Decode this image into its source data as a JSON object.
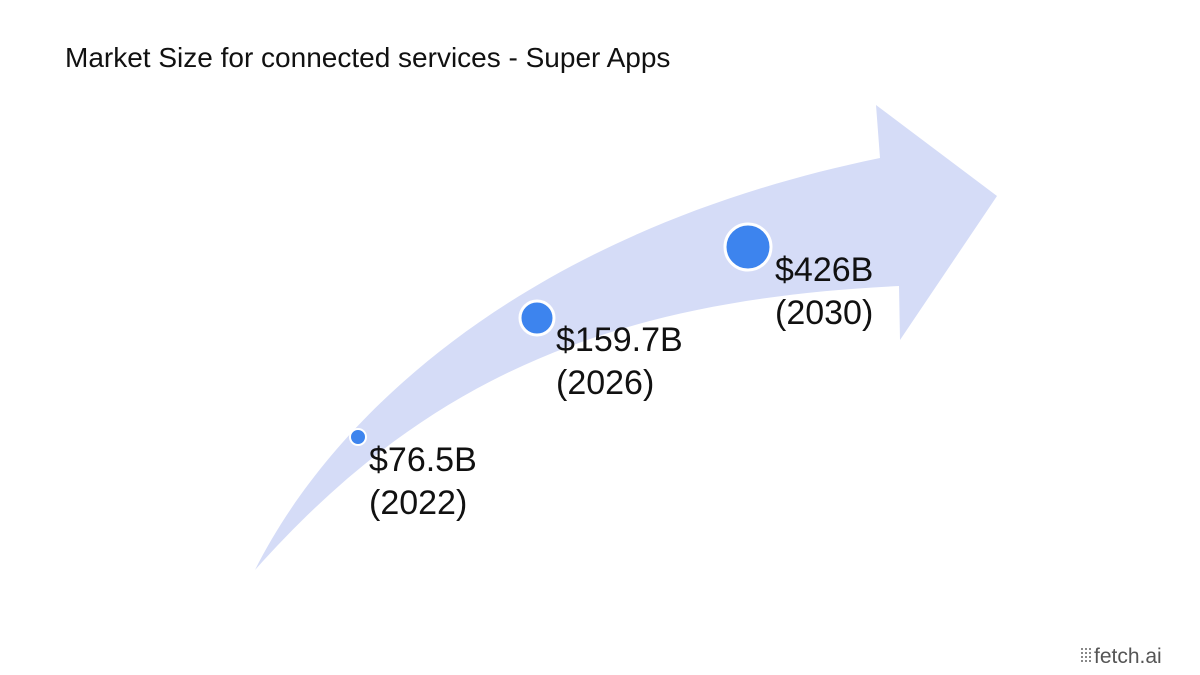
{
  "header": {
    "title": "Market Size for connected services - Super Apps"
  },
  "points": [
    {
      "value": "$76.5B",
      "year": "(2022)"
    },
    {
      "value": "$159.7B",
      "year": "(2026)"
    },
    {
      "value": "$426B",
      "year": "(2030)"
    }
  ],
  "footer": {
    "logo": "fetch.ai"
  }
}
